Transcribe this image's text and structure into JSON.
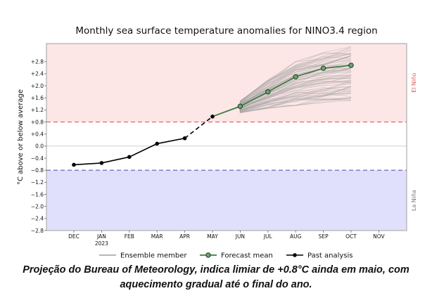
{
  "chart_data": {
    "type": "line",
    "title": "Monthly sea surface temperature anomalies for NINO3.4 region",
    "ylabel": "°C above or below average",
    "xlabel": "",
    "categories": [
      "DEC",
      "JAN",
      "FEB",
      "MAR",
      "APR",
      "MAY",
      "JUN",
      "JUL",
      "AUG",
      "SEP",
      "OCT",
      "NOV"
    ],
    "year_label": "2023",
    "ylim": [
      -2.8,
      3.4
    ],
    "ytick_values": [
      -2.8,
      -2.4,
      -2.0,
      -1.6,
      -1.2,
      -0.8,
      -0.4,
      0.0,
      0.4,
      0.8,
      1.2,
      1.6,
      2.0,
      2.4,
      2.8
    ],
    "ytick_labels": [
      "−2.8",
      "−2.4",
      "−2.0",
      "−1.6",
      "−1.2",
      "−0.8",
      "−0.4",
      "0.0",
      "+0.4",
      "+0.8",
      "+1.2",
      "+1.6",
      "+2.0",
      "+2.4",
      "+2.8"
    ],
    "thresholds": [
      {
        "label": "El Niño",
        "value": 0.8,
        "color": "#e05a5a",
        "fill": "#fde6e6"
      },
      {
        "label": "La Niña",
        "value": -0.8,
        "color": "#5a5ab0",
        "fill": "#e0e0fc"
      }
    ],
    "series": [
      {
        "name": "Past analysis",
        "color": "#000000",
        "x": [
          "DEC",
          "JAN",
          "FEB",
          "MAR",
          "APR"
        ],
        "values": [
          -0.62,
          -0.56,
          -0.36,
          0.08,
          0.26
        ]
      },
      {
        "name": "Forecast mean",
        "color": "#3a7d44",
        "x": [
          "MAY",
          "JUN",
          "JUL",
          "AUG",
          "SEP",
          "OCT"
        ],
        "values": [
          0.98,
          1.32,
          1.8,
          2.3,
          2.58,
          2.68
        ]
      },
      {
        "name": "Ensemble member",
        "color": "#9e9e9e",
        "x": [
          "JUN",
          "JUL",
          "AUG",
          "SEP",
          "OCT"
        ],
        "range_low": [
          1.1,
          1.25,
          1.35,
          1.45,
          1.5
        ],
        "range_high": [
          1.5,
          2.2,
          2.8,
          3.1,
          3.3
        ]
      }
    ],
    "legend_position": "bottom",
    "grid": false
  },
  "caption": "Projeção do Bureau of Meteorology, indica limiar de +0.8°C ainda em maio, com aquecimento gradual até o final do ano."
}
